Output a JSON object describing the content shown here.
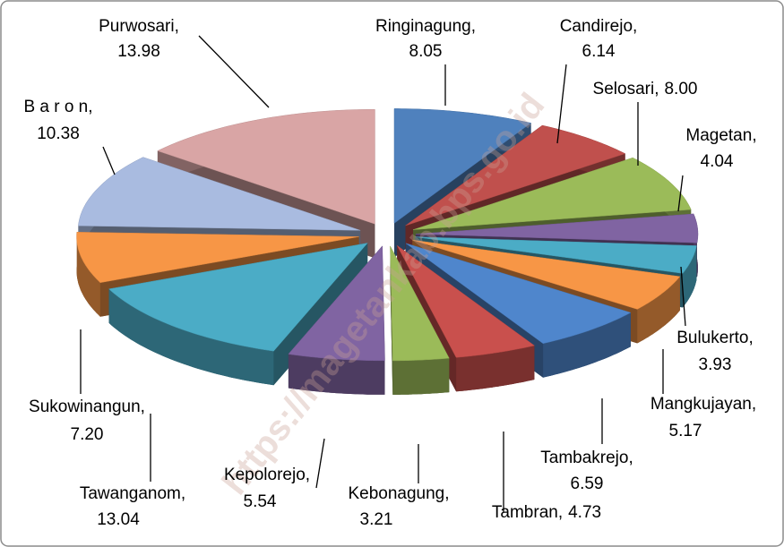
{
  "chart_data": {
    "type": "pie3d",
    "watermark": "https://magetankab.bps.go.id",
    "categories": [
      "Ringinagung,",
      "Candirejo,",
      "Selosari,",
      "Magetan,",
      "Bulukerto,",
      "Mangkujayan,",
      "Tambakrejo,",
      "Tambran,",
      "Kebonagung,",
      "Kepolorejo,",
      "Tawanganom,",
      "Sukowinangun,",
      "B a r o n,",
      "Purwosari,"
    ],
    "values": [
      8.05,
      6.14,
      8.0,
      4.04,
      3.93,
      5.17,
      6.59,
      4.73,
      3.21,
      5.54,
      13.04,
      7.2,
      10.38,
      13.98
    ],
    "value_labels": [
      "8.05",
      "6.14",
      "8.00",
      "4.04",
      "3.93",
      "5.17",
      "6.59",
      "4.73",
      "3.21",
      "5.54",
      "13.04",
      "7.20",
      "10.38",
      "13.98"
    ],
    "colors": [
      "#4f81bd",
      "#c0504d",
      "#9bbb59",
      "#8064a2",
      "#4bacc6",
      "#f79646",
      "#4f86cc",
      "#c9504d",
      "#9bbb59",
      "#8064a2",
      "#4bacc6",
      "#f79646",
      "#a9bbe0",
      "#d9a5a5"
    ]
  }
}
